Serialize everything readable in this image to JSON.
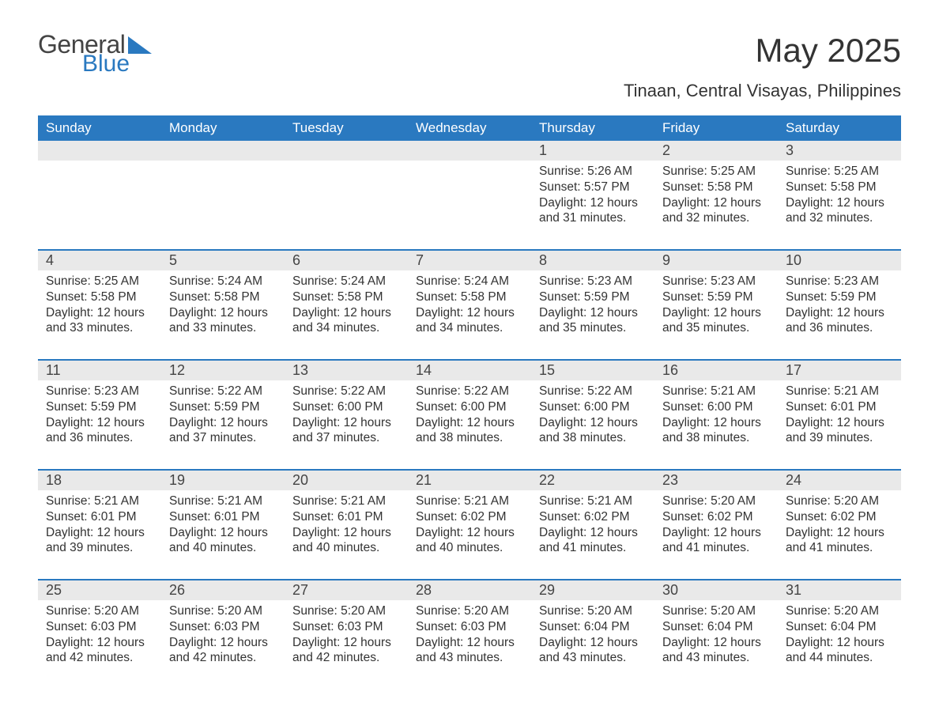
{
  "brand": {
    "word1": "General",
    "word2": "Blue",
    "accent_color": "#2a79c0"
  },
  "title": "May 2025",
  "location": "Tinaan, Central Visayas, Philippines",
  "day_headers": [
    "Sunday",
    "Monday",
    "Tuesday",
    "Wednesday",
    "Thursday",
    "Friday",
    "Saturday"
  ],
  "colors": {
    "header_bg": "#2a79c0",
    "header_text": "#ffffff",
    "daynum_bg": "#e9e9e9",
    "row_divider": "#2a79c0",
    "body_text": "#333333",
    "page_bg": "#ffffff"
  },
  "fonts": {
    "title_size_pt": 32,
    "subtitle_size_pt": 17,
    "header_size_pt": 13,
    "body_size_pt": 12
  },
  "weeks": [
    [
      null,
      null,
      null,
      null,
      {
        "n": "1",
        "sunrise": "Sunrise: 5:26 AM",
        "sunset": "Sunset: 5:57 PM",
        "daylight": "Daylight: 12 hours and 31 minutes."
      },
      {
        "n": "2",
        "sunrise": "Sunrise: 5:25 AM",
        "sunset": "Sunset: 5:58 PM",
        "daylight": "Daylight: 12 hours and 32 minutes."
      },
      {
        "n": "3",
        "sunrise": "Sunrise: 5:25 AM",
        "sunset": "Sunset: 5:58 PM",
        "daylight": "Daylight: 12 hours and 32 minutes."
      }
    ],
    [
      {
        "n": "4",
        "sunrise": "Sunrise: 5:25 AM",
        "sunset": "Sunset: 5:58 PM",
        "daylight": "Daylight: 12 hours and 33 minutes."
      },
      {
        "n": "5",
        "sunrise": "Sunrise: 5:24 AM",
        "sunset": "Sunset: 5:58 PM",
        "daylight": "Daylight: 12 hours and 33 minutes."
      },
      {
        "n": "6",
        "sunrise": "Sunrise: 5:24 AM",
        "sunset": "Sunset: 5:58 PM",
        "daylight": "Daylight: 12 hours and 34 minutes."
      },
      {
        "n": "7",
        "sunrise": "Sunrise: 5:24 AM",
        "sunset": "Sunset: 5:58 PM",
        "daylight": "Daylight: 12 hours and 34 minutes."
      },
      {
        "n": "8",
        "sunrise": "Sunrise: 5:23 AM",
        "sunset": "Sunset: 5:59 PM",
        "daylight": "Daylight: 12 hours and 35 minutes."
      },
      {
        "n": "9",
        "sunrise": "Sunrise: 5:23 AM",
        "sunset": "Sunset: 5:59 PM",
        "daylight": "Daylight: 12 hours and 35 minutes."
      },
      {
        "n": "10",
        "sunrise": "Sunrise: 5:23 AM",
        "sunset": "Sunset: 5:59 PM",
        "daylight": "Daylight: 12 hours and 36 minutes."
      }
    ],
    [
      {
        "n": "11",
        "sunrise": "Sunrise: 5:23 AM",
        "sunset": "Sunset: 5:59 PM",
        "daylight": "Daylight: 12 hours and 36 minutes."
      },
      {
        "n": "12",
        "sunrise": "Sunrise: 5:22 AM",
        "sunset": "Sunset: 5:59 PM",
        "daylight": "Daylight: 12 hours and 37 minutes."
      },
      {
        "n": "13",
        "sunrise": "Sunrise: 5:22 AM",
        "sunset": "Sunset: 6:00 PM",
        "daylight": "Daylight: 12 hours and 37 minutes."
      },
      {
        "n": "14",
        "sunrise": "Sunrise: 5:22 AM",
        "sunset": "Sunset: 6:00 PM",
        "daylight": "Daylight: 12 hours and 38 minutes."
      },
      {
        "n": "15",
        "sunrise": "Sunrise: 5:22 AM",
        "sunset": "Sunset: 6:00 PM",
        "daylight": "Daylight: 12 hours and 38 minutes."
      },
      {
        "n": "16",
        "sunrise": "Sunrise: 5:21 AM",
        "sunset": "Sunset: 6:00 PM",
        "daylight": "Daylight: 12 hours and 38 minutes."
      },
      {
        "n": "17",
        "sunrise": "Sunrise: 5:21 AM",
        "sunset": "Sunset: 6:01 PM",
        "daylight": "Daylight: 12 hours and 39 minutes."
      }
    ],
    [
      {
        "n": "18",
        "sunrise": "Sunrise: 5:21 AM",
        "sunset": "Sunset: 6:01 PM",
        "daylight": "Daylight: 12 hours and 39 minutes."
      },
      {
        "n": "19",
        "sunrise": "Sunrise: 5:21 AM",
        "sunset": "Sunset: 6:01 PM",
        "daylight": "Daylight: 12 hours and 40 minutes."
      },
      {
        "n": "20",
        "sunrise": "Sunrise: 5:21 AM",
        "sunset": "Sunset: 6:01 PM",
        "daylight": "Daylight: 12 hours and 40 minutes."
      },
      {
        "n": "21",
        "sunrise": "Sunrise: 5:21 AM",
        "sunset": "Sunset: 6:02 PM",
        "daylight": "Daylight: 12 hours and 40 minutes."
      },
      {
        "n": "22",
        "sunrise": "Sunrise: 5:21 AM",
        "sunset": "Sunset: 6:02 PM",
        "daylight": "Daylight: 12 hours and 41 minutes."
      },
      {
        "n": "23",
        "sunrise": "Sunrise: 5:20 AM",
        "sunset": "Sunset: 6:02 PM",
        "daylight": "Daylight: 12 hours and 41 minutes."
      },
      {
        "n": "24",
        "sunrise": "Sunrise: 5:20 AM",
        "sunset": "Sunset: 6:02 PM",
        "daylight": "Daylight: 12 hours and 41 minutes."
      }
    ],
    [
      {
        "n": "25",
        "sunrise": "Sunrise: 5:20 AM",
        "sunset": "Sunset: 6:03 PM",
        "daylight": "Daylight: 12 hours and 42 minutes."
      },
      {
        "n": "26",
        "sunrise": "Sunrise: 5:20 AM",
        "sunset": "Sunset: 6:03 PM",
        "daylight": "Daylight: 12 hours and 42 minutes."
      },
      {
        "n": "27",
        "sunrise": "Sunrise: 5:20 AM",
        "sunset": "Sunset: 6:03 PM",
        "daylight": "Daylight: 12 hours and 42 minutes."
      },
      {
        "n": "28",
        "sunrise": "Sunrise: 5:20 AM",
        "sunset": "Sunset: 6:03 PM",
        "daylight": "Daylight: 12 hours and 43 minutes."
      },
      {
        "n": "29",
        "sunrise": "Sunrise: 5:20 AM",
        "sunset": "Sunset: 6:04 PM",
        "daylight": "Daylight: 12 hours and 43 minutes."
      },
      {
        "n": "30",
        "sunrise": "Sunrise: 5:20 AM",
        "sunset": "Sunset: 6:04 PM",
        "daylight": "Daylight: 12 hours and 43 minutes."
      },
      {
        "n": "31",
        "sunrise": "Sunrise: 5:20 AM",
        "sunset": "Sunset: 6:04 PM",
        "daylight": "Daylight: 12 hours and 44 minutes."
      }
    ]
  ]
}
